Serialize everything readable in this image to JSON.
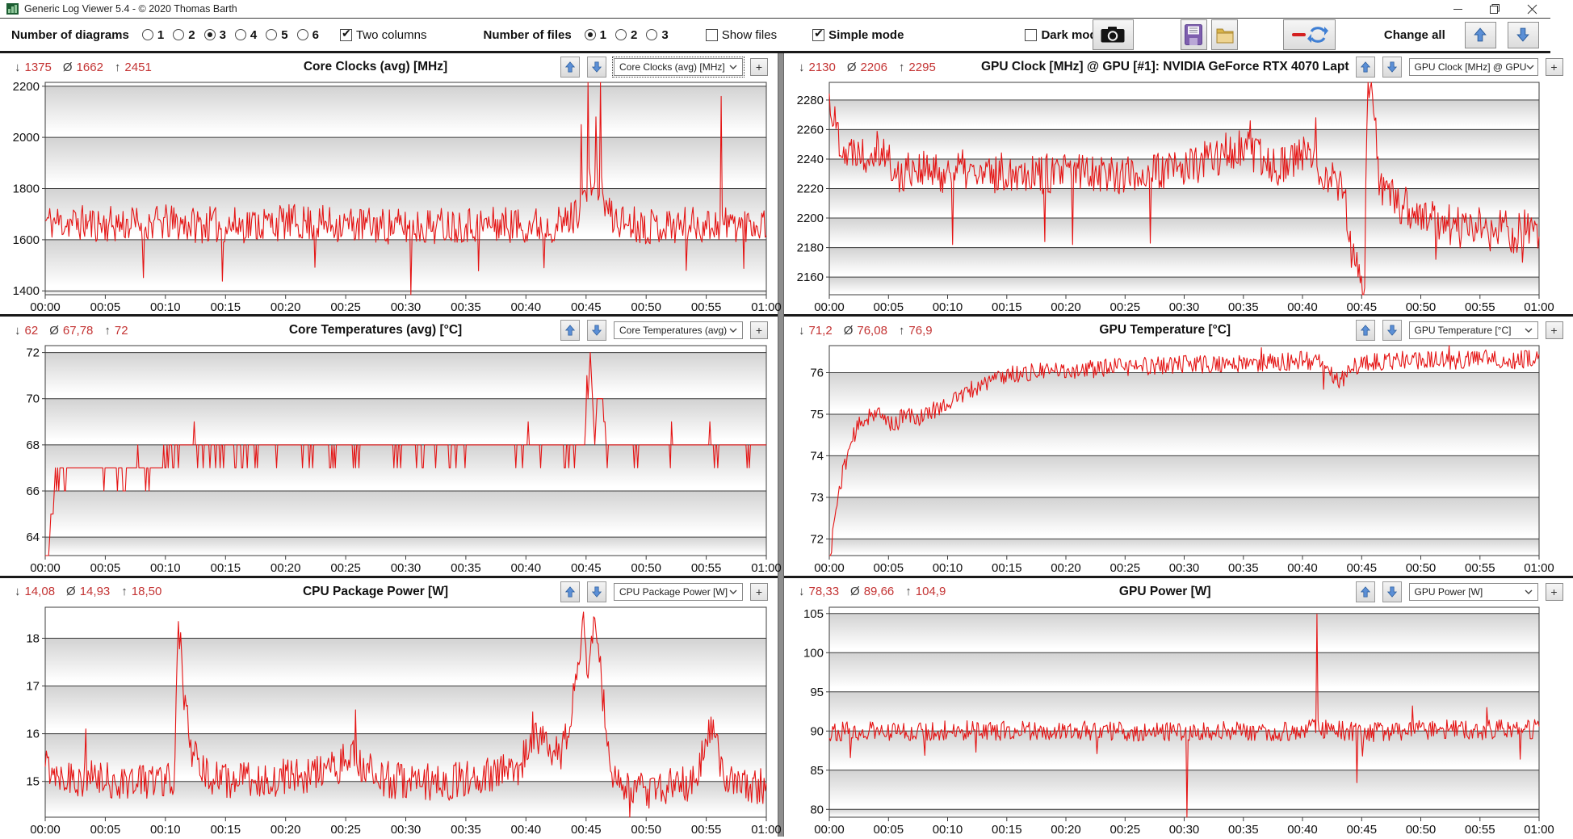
{
  "window": {
    "title": "Generic Log Viewer 5.4 - © 2020 Thomas Barth",
    "controls": {
      "minimize": "minimize",
      "restore": "restore",
      "close": "close"
    }
  },
  "toolbar": {
    "diagrams_label": "Number of diagrams",
    "diagram_options": [
      "1",
      "2",
      "3",
      "4",
      "5",
      "6"
    ],
    "diagrams_selected": "3",
    "two_columns_label": "Two columns",
    "two_columns_checked": true,
    "files_label": "Number of files",
    "file_options": [
      "1",
      "2",
      "3"
    ],
    "files_selected": "1",
    "show_files_label": "Show files",
    "show_files_checked": false,
    "simple_mode_label": "Simple mode",
    "simple_mode_checked": true,
    "dark_mode_label": "Dark mode",
    "dark_mode_checked": false,
    "change_all_label": "Change all"
  },
  "colors": {
    "series_red": "#e41414",
    "stats_red": "#c43434",
    "grid_line": "#3c3c3c",
    "band_gray": "#d2d2d2",
    "divider_gray": "#8e8e8e"
  },
  "stats_symbols": {
    "min": "↓",
    "avg": "Ø",
    "max": "↑"
  },
  "plus_label": "+",
  "x_ticks": [
    "00:00",
    "00:05",
    "00:10",
    "00:15",
    "00:20",
    "00:25",
    "00:30",
    "00:35",
    "00:40",
    "00:45",
    "00:50",
    "00:55",
    "01:00"
  ],
  "chart_data": [
    {
      "type": "line",
      "title": "Core Clocks (avg) [MHz]",
      "stats": {
        "min": "1375",
        "avg": "1662",
        "max": "2451"
      },
      "dropdown": "Core Clocks (avg) [MHz]",
      "xlabel": "",
      "ylabel": "MHz",
      "yticks": [
        1400,
        1600,
        1800,
        2000,
        2200
      ],
      "ylim": [
        1385,
        2215
      ],
      "x_minutes": [
        0,
        60
      ],
      "series": {
        "name": "Core Clocks (avg)",
        "color": "#e41414",
        "seed": 11,
        "samples": 640,
        "noise": 72,
        "trend": [
          [
            0,
            1672
          ],
          [
            5,
            1660
          ],
          [
            10,
            1665
          ],
          [
            15,
            1655
          ],
          [
            20,
            1668
          ],
          [
            25,
            1660
          ],
          [
            30,
            1650
          ],
          [
            35,
            1662
          ],
          [
            40,
            1658
          ],
          [
            43,
            1660
          ],
          [
            44,
            1690
          ],
          [
            44.8,
            1760
          ],
          [
            45.4,
            1830
          ],
          [
            46,
            1820
          ],
          [
            46.6,
            1740
          ],
          [
            47.2,
            1680
          ],
          [
            50,
            1655
          ],
          [
            55,
            1660
          ],
          [
            60,
            1665
          ]
        ],
        "spikes": [
          [
            8.2,
            1452
          ],
          [
            14.7,
            1438
          ],
          [
            22.4,
            1492
          ],
          [
            30.4,
            1375
          ],
          [
            36.1,
            1478
          ],
          [
            41.5,
            1490
          ],
          [
            44.6,
            2050
          ],
          [
            45.2,
            2451
          ],
          [
            45.8,
            2080
          ],
          [
            46.2,
            2240
          ],
          [
            53.3,
            1480
          ],
          [
            56.2,
            2160
          ],
          [
            58.1,
            1488
          ]
        ]
      }
    },
    {
      "type": "line",
      "title": "GPU Clock [MHz] @ GPU [#1]: NVIDIA GeForce RTX 4070 Lapt",
      "stats": {
        "min": "2130",
        "avg": "2206",
        "max": "2295"
      },
      "dropdown": "GPU Clock [MHz] @ GPU",
      "xlabel": "",
      "ylabel": "MHz",
      "yticks": [
        2160,
        2180,
        2200,
        2220,
        2240,
        2260,
        2280
      ],
      "ylim": [
        2148,
        2292
      ],
      "x_minutes": [
        0,
        60
      ],
      "series": {
        "name": "GPU Clock",
        "color": "#e41414",
        "seed": 22,
        "samples": 640,
        "noise": 14,
        "trend": [
          [
            0,
            2281
          ],
          [
            0.4,
            2266
          ],
          [
            1,
            2252
          ],
          [
            1.6,
            2242
          ],
          [
            2.2,
            2250
          ],
          [
            3,
            2243
          ],
          [
            4,
            2251
          ],
          [
            5,
            2240
          ],
          [
            5.6,
            2226
          ],
          [
            7,
            2236
          ],
          [
            9,
            2229
          ],
          [
            11,
            2233
          ],
          [
            13,
            2228
          ],
          [
            16,
            2233
          ],
          [
            19,
            2229
          ],
          [
            22,
            2233
          ],
          [
            25,
            2229
          ],
          [
            28,
            2231
          ],
          [
            31,
            2236
          ],
          [
            33,
            2243
          ],
          [
            35,
            2247
          ],
          [
            36,
            2241
          ],
          [
            38,
            2236
          ],
          [
            40,
            2243
          ],
          [
            42,
            2231
          ],
          [
            43.5,
            2222
          ],
          [
            44.2,
            2172
          ],
          [
            44.8,
            2162
          ],
          [
            45.2,
            2130
          ],
          [
            45.5,
            2295
          ],
          [
            45.9,
            2295
          ],
          [
            46.4,
            2226
          ],
          [
            47,
            2216
          ],
          [
            48,
            2211
          ],
          [
            49,
            2206
          ],
          [
            50,
            2201
          ],
          [
            52,
            2197
          ],
          [
            54,
            2191
          ],
          [
            55,
            2197
          ],
          [
            56,
            2188
          ],
          [
            57,
            2193
          ],
          [
            58,
            2188
          ],
          [
            59,
            2193
          ],
          [
            60,
            2191
          ]
        ],
        "spikes": [
          [
            10.4,
            2182
          ],
          [
            18.2,
            2184
          ],
          [
            20.6,
            2182
          ],
          [
            27.1,
            2183
          ],
          [
            35.6,
            2266
          ],
          [
            41.1,
            2268
          ],
          [
            51.3,
            2172
          ],
          [
            58.6,
            2170
          ]
        ]
      }
    },
    {
      "type": "line",
      "title": "Core Temperatures (avg) [°C]",
      "stats": {
        "min": "62",
        "avg": "67,78",
        "max": "72"
      },
      "dropdown": "Core Temperatures (avg)",
      "xlabel": "",
      "ylabel": "°C",
      "yticks": [
        64,
        66,
        68,
        70,
        72
      ],
      "ylim": [
        63.2,
        72.3
      ],
      "x_minutes": [
        0,
        60
      ],
      "series": {
        "name": "Core Temperatures (avg)",
        "color": "#e41414",
        "seed": 33,
        "samples": 640,
        "noise": 0.48,
        "quantize": 1,
        "trend": [
          [
            0,
            62.0
          ],
          [
            0.25,
            63.0
          ],
          [
            0.5,
            64.5
          ],
          [
            0.8,
            66.0
          ],
          [
            1.2,
            66.8
          ],
          [
            2,
            66.9
          ],
          [
            9.5,
            66.9
          ],
          [
            10.2,
            67.8
          ],
          [
            44.9,
            67.9
          ],
          [
            45.35,
            72
          ],
          [
            45.7,
            68.2
          ],
          [
            46.0,
            70
          ],
          [
            46.3,
            69.8
          ],
          [
            46.6,
            67.9
          ],
          [
            60,
            67.9
          ]
        ],
        "spikes": [
          [
            7.7,
            68.4
          ],
          [
            12.4,
            68.6
          ],
          [
            33.6,
            66.6
          ],
          [
            40.2,
            68.6
          ],
          [
            45.1,
            70.5
          ],
          [
            52.1,
            68.6
          ],
          [
            55.3,
            68.5
          ],
          [
            57.8,
            68.4
          ]
        ]
      }
    },
    {
      "type": "line",
      "title": "GPU Temperature [°C]",
      "stats": {
        "min": "71,2",
        "avg": "76,08",
        "max": "76,9"
      },
      "dropdown": "GPU Temperature [°C]",
      "xlabel": "",
      "ylabel": "°C",
      "yticks": [
        72,
        73,
        74,
        75,
        76
      ],
      "ylim": [
        71.6,
        76.65
      ],
      "x_minutes": [
        0,
        60
      ],
      "series": {
        "name": "GPU Temperature",
        "color": "#e41414",
        "seed": 44,
        "samples": 640,
        "noise": 0.22,
        "trend": [
          [
            0,
            71.2
          ],
          [
            0.2,
            71.9
          ],
          [
            0.5,
            72.6
          ],
          [
            1,
            73.4
          ],
          [
            1.5,
            74.0
          ],
          [
            2,
            74.45
          ],
          [
            2.6,
            74.75
          ],
          [
            3.2,
            74.95
          ],
          [
            3.8,
            75.05
          ],
          [
            4.5,
            74.9
          ],
          [
            5.5,
            74.75
          ],
          [
            6.5,
            75.0
          ],
          [
            7.5,
            74.9
          ],
          [
            8.5,
            75.05
          ],
          [
            9.5,
            75.2
          ],
          [
            10.5,
            75.35
          ],
          [
            11.5,
            75.5
          ],
          [
            12.5,
            75.65
          ],
          [
            13.5,
            75.8
          ],
          [
            15,
            75.95
          ],
          [
            17,
            76.0
          ],
          [
            20,
            76.05
          ],
          [
            23,
            76.1
          ],
          [
            26,
            76.15
          ],
          [
            30,
            76.2
          ],
          [
            34,
            76.2
          ],
          [
            38,
            76.25
          ],
          [
            40,
            76.3
          ],
          [
            42,
            76.2
          ],
          [
            43.2,
            75.75
          ],
          [
            44,
            76.15
          ],
          [
            46,
            76.25
          ],
          [
            48,
            76.3
          ],
          [
            50,
            76.3
          ],
          [
            53,
            76.3
          ],
          [
            56,
            76.35
          ],
          [
            58,
            76.3
          ],
          [
            60,
            76.35
          ]
        ],
        "spikes": [
          [
            36.5,
            76.6
          ],
          [
            41.8,
            75.6
          ],
          [
            52.4,
            76.9
          ]
        ]
      }
    },
    {
      "type": "line",
      "title": "CPU Package Power [W]",
      "stats": {
        "min": "14,08",
        "avg": "14,93",
        "max": "18,50"
      },
      "dropdown": "CPU Package Power [W]",
      "xlabel": "",
      "ylabel": "W",
      "yticks": [
        15,
        16,
        17,
        18
      ],
      "ylim": [
        14.25,
        18.65
      ],
      "x_minutes": [
        0,
        60
      ],
      "series": {
        "name": "CPU Package Power",
        "color": "#e41414",
        "seed": 55,
        "samples": 640,
        "noise": 0.4,
        "trend": [
          [
            0,
            15.35
          ],
          [
            2,
            15.1
          ],
          [
            5,
            15.0
          ],
          [
            8,
            15.0
          ],
          [
            10.7,
            15.1
          ],
          [
            11.1,
            18.3
          ],
          [
            11.6,
            16.6
          ],
          [
            12.2,
            15.6
          ],
          [
            13,
            15.2
          ],
          [
            15,
            15.0
          ],
          [
            18,
            15.05
          ],
          [
            21,
            15.1
          ],
          [
            24,
            15.25
          ],
          [
            25.5,
            15.5
          ],
          [
            26.5,
            15.3
          ],
          [
            28,
            15.05
          ],
          [
            31,
            15.0
          ],
          [
            34,
            15.0
          ],
          [
            37,
            15.1
          ],
          [
            39.5,
            15.3
          ],
          [
            40.6,
            16.1
          ],
          [
            41.6,
            15.7
          ],
          [
            42.8,
            15.5
          ],
          [
            43.8,
            16.4
          ],
          [
            44.4,
            17.6
          ],
          [
            44.8,
            18.5
          ],
          [
            45.2,
            17.2
          ],
          [
            45.6,
            18.4
          ],
          [
            46.1,
            17.6
          ],
          [
            46.6,
            16.2
          ],
          [
            47.2,
            15.2
          ],
          [
            48,
            14.85
          ],
          [
            50,
            14.8
          ],
          [
            52,
            14.9
          ],
          [
            54,
            15.0
          ],
          [
            55.2,
            16.1
          ],
          [
            55.8,
            15.9
          ],
          [
            56.4,
            15.1
          ],
          [
            58,
            14.9
          ],
          [
            60,
            14.9
          ]
        ],
        "spikes": [
          [
            3.4,
            16.1
          ],
          [
            11.1,
            18.35
          ],
          [
            25.8,
            16.5
          ],
          [
            44.8,
            18.55
          ],
          [
            45.6,
            18.45
          ],
          [
            48.6,
            14.15
          ],
          [
            55.4,
            16.35
          ]
        ]
      }
    },
    {
      "type": "line",
      "title": "GPU Power [W]",
      "stats": {
        "min": "78,33",
        "avg": "89,66",
        "max": "104,9"
      },
      "dropdown": "GPU Power [W]",
      "xlabel": "",
      "ylabel": "W",
      "yticks": [
        80,
        85,
        90,
        95,
        100,
        105
      ],
      "ylim": [
        79,
        105.8
      ],
      "x_minutes": [
        0,
        60
      ],
      "series": {
        "name": "GPU Power",
        "color": "#e41414",
        "seed": 66,
        "samples": 640,
        "noise": 1.25,
        "trend": [
          [
            0,
            90
          ],
          [
            5,
            89.9
          ],
          [
            10,
            90.1
          ],
          [
            15,
            90
          ],
          [
            20,
            90.1
          ],
          [
            25,
            89.9
          ],
          [
            30,
            89.9
          ],
          [
            35,
            90
          ],
          [
            40,
            90
          ],
          [
            41,
            90.3
          ],
          [
            45,
            89.8
          ],
          [
            50,
            90.1
          ],
          [
            53,
            90.3
          ],
          [
            55,
            90
          ],
          [
            57,
            90.4
          ],
          [
            60,
            90.2
          ]
        ],
        "spikes": [
          [
            1.8,
            86.6
          ],
          [
            8.1,
            86.9
          ],
          [
            12.4,
            87.3
          ],
          [
            22.6,
            87.1
          ],
          [
            30.2,
            78.33
          ],
          [
            41.2,
            104.9
          ],
          [
            44.6,
            83.4
          ],
          [
            45.1,
            86.8
          ],
          [
            49.3,
            93.2
          ],
          [
            55.6,
            93.0
          ],
          [
            58.4,
            86.4
          ]
        ]
      }
    }
  ]
}
